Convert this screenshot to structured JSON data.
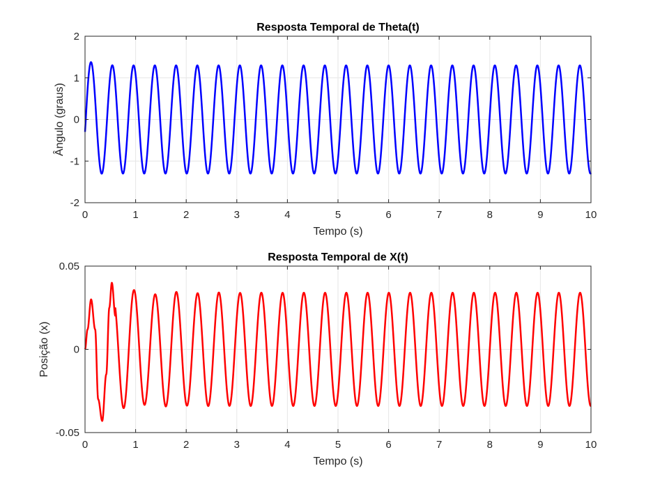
{
  "chart_data": [
    {
      "type": "line",
      "title": "Resposta Temporal de Theta(t)",
      "xlabel": "Tempo (s)",
      "ylabel": "Ângulo (graus)",
      "xlim": [
        0,
        10
      ],
      "ylim": [
        -2,
        2
      ],
      "xticks": [
        0,
        1,
        2,
        3,
        4,
        5,
        6,
        7,
        8,
        9,
        10
      ],
      "xtick_labels": [
        "0",
        "1",
        "2",
        "3",
        "4",
        "5",
        "6",
        "7",
        "8",
        "9",
        "10"
      ],
      "yticks": [
        -2,
        -1,
        0,
        1,
        2
      ],
      "ytick_labels": [
        "-2",
        "-1",
        "0",
        "1",
        "2"
      ],
      "grid": true,
      "color": "#0000ff",
      "series": [
        {
          "description_of_shape": "sustained oscillation, period ~0.42 s",
          "x": [
            0,
            0.05,
            0.1,
            0.15,
            0.2,
            0.25,
            0.3,
            0.35,
            0.4,
            0.45,
            0.5,
            0.55,
            0.6,
            0.65,
            0.7,
            0.75,
            0.8,
            0.85,
            0.9,
            0.95,
            1.0,
            1.25,
            1.5,
            1.75,
            2.0,
            2.5,
            3.0,
            3.5,
            4.0,
            4.5,
            5.0,
            5.5,
            6.0,
            6.5,
            7.0,
            7.5,
            8.0,
            8.5,
            9.0,
            9.5,
            10.0
          ],
          "peak_amplitude_first": 1.5,
          "steady_amplitude": 1.3,
          "first_peak_time": 0.12,
          "first_trough_time": 0.34,
          "period": 0.42,
          "end_value": -1.05
        }
      ]
    },
    {
      "type": "line",
      "title": "Resposta Temporal de X(t)",
      "xlabel": "Tempo (s)",
      "ylabel": "Posição (x)",
      "xlim": [
        0,
        10
      ],
      "ylim": [
        -0.05,
        0.05
      ],
      "xticks": [
        0,
        1,
        2,
        3,
        4,
        5,
        6,
        7,
        8,
        9,
        10
      ],
      "xtick_labels": [
        "0",
        "1",
        "2",
        "3",
        "4",
        "5",
        "6",
        "7",
        "8",
        "9",
        "10"
      ],
      "yticks": [
        -0.05,
        0,
        0.05
      ],
      "ytick_labels": [
        "-0.05",
        "0",
        "0.05"
      ],
      "grid": true,
      "color": "#ff0000",
      "series": [
        {
          "x": [
            0,
            0.05,
            0.12,
            0.17,
            0.25,
            0.34,
            0.43,
            0.52,
            0.62,
            0.73,
            0.85,
            0.95,
            1.08,
            1.2,
            1.35,
            1.5,
            1.65,
            1.8,
            2.0,
            2.2,
            2.4,
            2.6,
            2.8,
            3.0,
            3.2,
            3.4,
            3.6,
            3.8,
            4.0,
            4.2,
            4.4,
            4.6,
            4.8,
            5.0,
            5.2,
            5.4,
            5.6,
            5.8,
            6.0,
            6.2,
            6.4,
            6.6,
            6.8,
            7.0,
            7.2,
            7.4,
            7.6,
            7.8,
            8.0,
            8.2,
            8.4,
            8.6,
            8.8,
            9.0,
            9.2,
            9.4,
            9.6,
            9.8,
            10.0
          ],
          "first_peak": 0.03,
          "first_trough": -0.043,
          "second_peak": 0.04,
          "steady_amplitude": 0.034,
          "period": 0.42,
          "end_value": -0.03
        }
      ]
    }
  ]
}
